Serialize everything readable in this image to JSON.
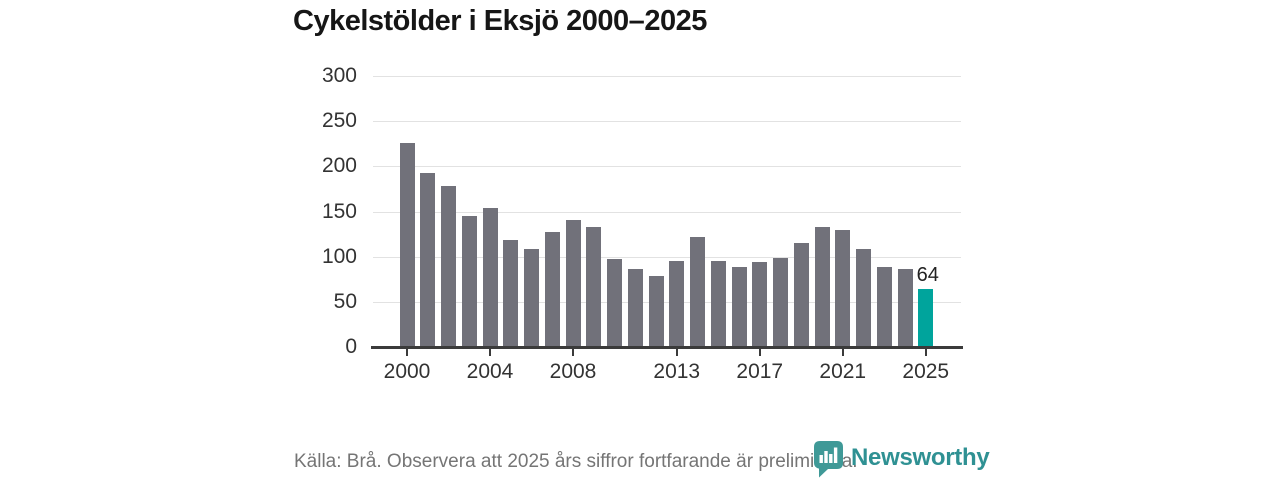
{
  "title": "Cykelstölder i Eksjö 2000–2025",
  "footer": {
    "source_note": "Källa: Brå. Observera att 2025 års siffror fortfarande är preliminära.",
    "brand": "Newsworthy"
  },
  "colors": {
    "bar_default": "#71717a",
    "bar_highlight": "#00a49c",
    "grid": "#e2e2e2",
    "axis": "#3b3b3b",
    "tick_label": "#333333",
    "title_text": "#161616",
    "footer_text": "#757575",
    "brand_teal": "#2f9193"
  },
  "chart_data": {
    "type": "bar",
    "title": "Cykelstölder i Eksjö 2000–2025",
    "xlabel": "",
    "ylabel": "",
    "categories": [
      2000,
      2001,
      2002,
      2003,
      2004,
      2005,
      2006,
      2007,
      2008,
      2009,
      2010,
      2011,
      2012,
      2013,
      2014,
      2015,
      2016,
      2017,
      2018,
      2019,
      2020,
      2021,
      2022,
      2023,
      2024,
      2025
    ],
    "values": [
      226,
      193,
      178,
      145,
      154,
      119,
      108,
      127,
      141,
      133,
      97,
      86,
      79,
      95,
      122,
      95,
      89,
      94,
      99,
      115,
      133,
      130,
      108,
      89,
      86,
      64
    ],
    "highlight_category": 2025,
    "highlight_value_label": "64",
    "ylim": [
      0,
      300
    ],
    "y_ticks": [
      0,
      50,
      100,
      150,
      200,
      250,
      300
    ],
    "x_ticks": [
      2000,
      2004,
      2008,
      2013,
      2017,
      2021,
      2025
    ],
    "grid": "horizontal",
    "legend": "none"
  }
}
